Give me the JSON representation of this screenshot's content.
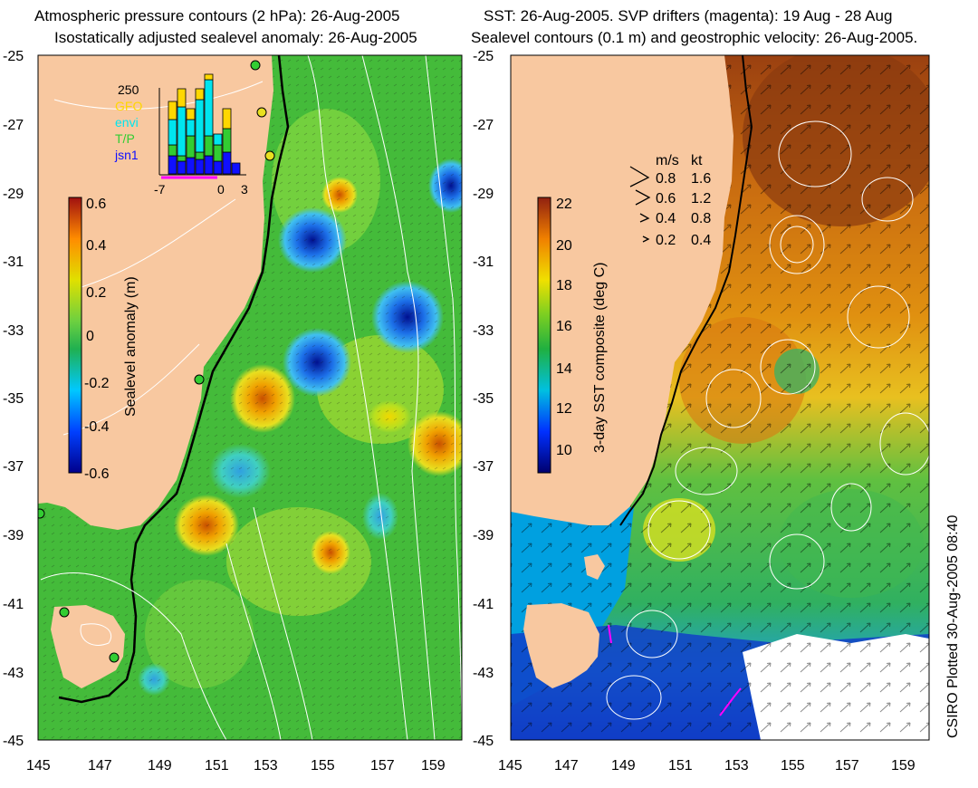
{
  "left_panel": {
    "title_line1": "Atmospheric pressure contours (2 hPa): 26-Aug-2005",
    "title_line2": "Isostatically adjusted sealevel anomaly: 26-Aug-2005",
    "colorbar_label": "Sealevel anomaly (m)",
    "colorbar_ticks": [
      "0.6",
      "0.4",
      "0.2",
      "0",
      "-0.2",
      "-0.4",
      "-0.6"
    ],
    "inset": {
      "max_label": "250",
      "legend": [
        {
          "label": "GFO",
          "color": "#ffd700"
        },
        {
          "label": "envi",
          "color": "#00e5ee"
        },
        {
          "label": "T/P",
          "color": "#32cd32"
        },
        {
          "label": "jsn1",
          "color": "#1010ff"
        }
      ],
      "x_ticks": [
        "-7",
        "0",
        "3"
      ]
    }
  },
  "right_panel": {
    "title_line1": "SST: 26-Aug-2005. SVP drifters (magenta): 19 Aug - 28 Aug",
    "title_line2": "Sealevel contours (0.1 m) and geostrophic velocity: 26-Aug-2005.",
    "colorbar_label": "3-day SST composite (deg C)",
    "colorbar_ticks": [
      "22",
      "20",
      "18",
      "16",
      "14",
      "12",
      "10"
    ],
    "velocity_legend": {
      "header_ms": "m/s",
      "header_kt": "kt",
      "rows": [
        {
          "ms": "0.8",
          "kt": "1.6"
        },
        {
          "ms": "0.6",
          "kt": "1.2"
        },
        {
          "ms": "0.4",
          "kt": "0.8"
        },
        {
          "ms": "0.2",
          "kt": "0.4"
        }
      ]
    }
  },
  "axes": {
    "lat_ticks": [
      "-25",
      "-27",
      "-29",
      "-31",
      "-33",
      "-35",
      "-37",
      "-39",
      "-41",
      "-43",
      "-45"
    ],
    "lon_ticks": [
      "145",
      "147",
      "149",
      "151",
      "153",
      "155",
      "157",
      "159"
    ]
  },
  "stamp": "CSIRO Plotted 30-Aug-2005 08:40",
  "colors": {
    "land": "#f8c8a0",
    "coast_line": "#000000",
    "contour": "#ffffff",
    "drifter": "#ff00ff",
    "tide_gauge": "#32cd32"
  }
}
